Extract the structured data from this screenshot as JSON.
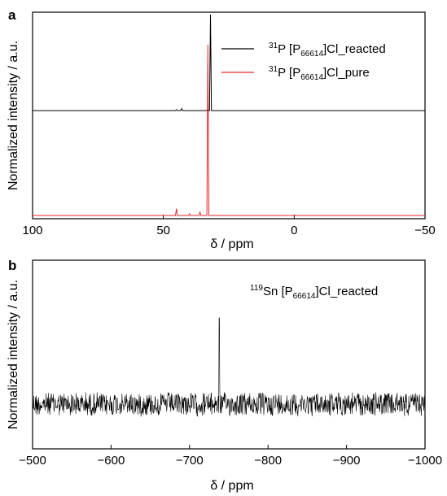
{
  "chart_data": [
    {
      "type": "line",
      "panel_label": "a",
      "xlabel": "δ / ppm",
      "ylabel": "Normalized intensity / a.u.",
      "xlim": [
        100,
        -50
      ],
      "x_ticks": [
        "100",
        "50",
        "0",
        "−50"
      ],
      "x_tick_values": [
        100,
        50,
        0,
        -50
      ],
      "legend_position": "top-right",
      "series": [
        {
          "name_prefix": "31",
          "name_main": "P [P",
          "name_sub": "66614",
          "name_suffix": "]Cl_reacted",
          "color": "#000000",
          "peaks": [
            {
              "x": 32.0,
              "height": 1.0
            },
            {
              "x": 33.0,
              "height": 0.02
            },
            {
              "x": 43.0,
              "height": 0.02
            },
            {
              "x": 45.0,
              "height": 0.01
            }
          ]
        },
        {
          "name_prefix": "31",
          "name_main": "P [P",
          "name_sub": "66614",
          "name_suffix": "]Cl_pure",
          "color": "#e8262b",
          "peaks": [
            {
              "x": 33.0,
              "height": 1.0
            },
            {
              "x": 45.0,
              "height": 0.04
            },
            {
              "x": 36.0,
              "height": 0.02
            },
            {
              "x": 40.0,
              "height": 0.01
            }
          ]
        }
      ]
    },
    {
      "type": "line",
      "panel_label": "b",
      "xlabel": "δ /  ppm",
      "ylabel": "Normalized intensity / a.u.",
      "xlim": [
        -500,
        -1000
      ],
      "x_ticks": [
        "−500",
        "−600",
        "−700",
        "−800",
        "−900",
        "−1000"
      ],
      "x_tick_values": [
        -500,
        -600,
        -700,
        -800,
        -900,
        -1000
      ],
      "annotation": {
        "prefix": "119",
        "main": "Sn [P",
        "sub": "66614",
        "suffix": "]Cl_reacted"
      },
      "series": [
        {
          "name": "",
          "color": "#000000",
          "peaks": [
            {
              "x": -738.0,
              "height": 1.0
            }
          ],
          "noise": true
        }
      ]
    }
  ]
}
